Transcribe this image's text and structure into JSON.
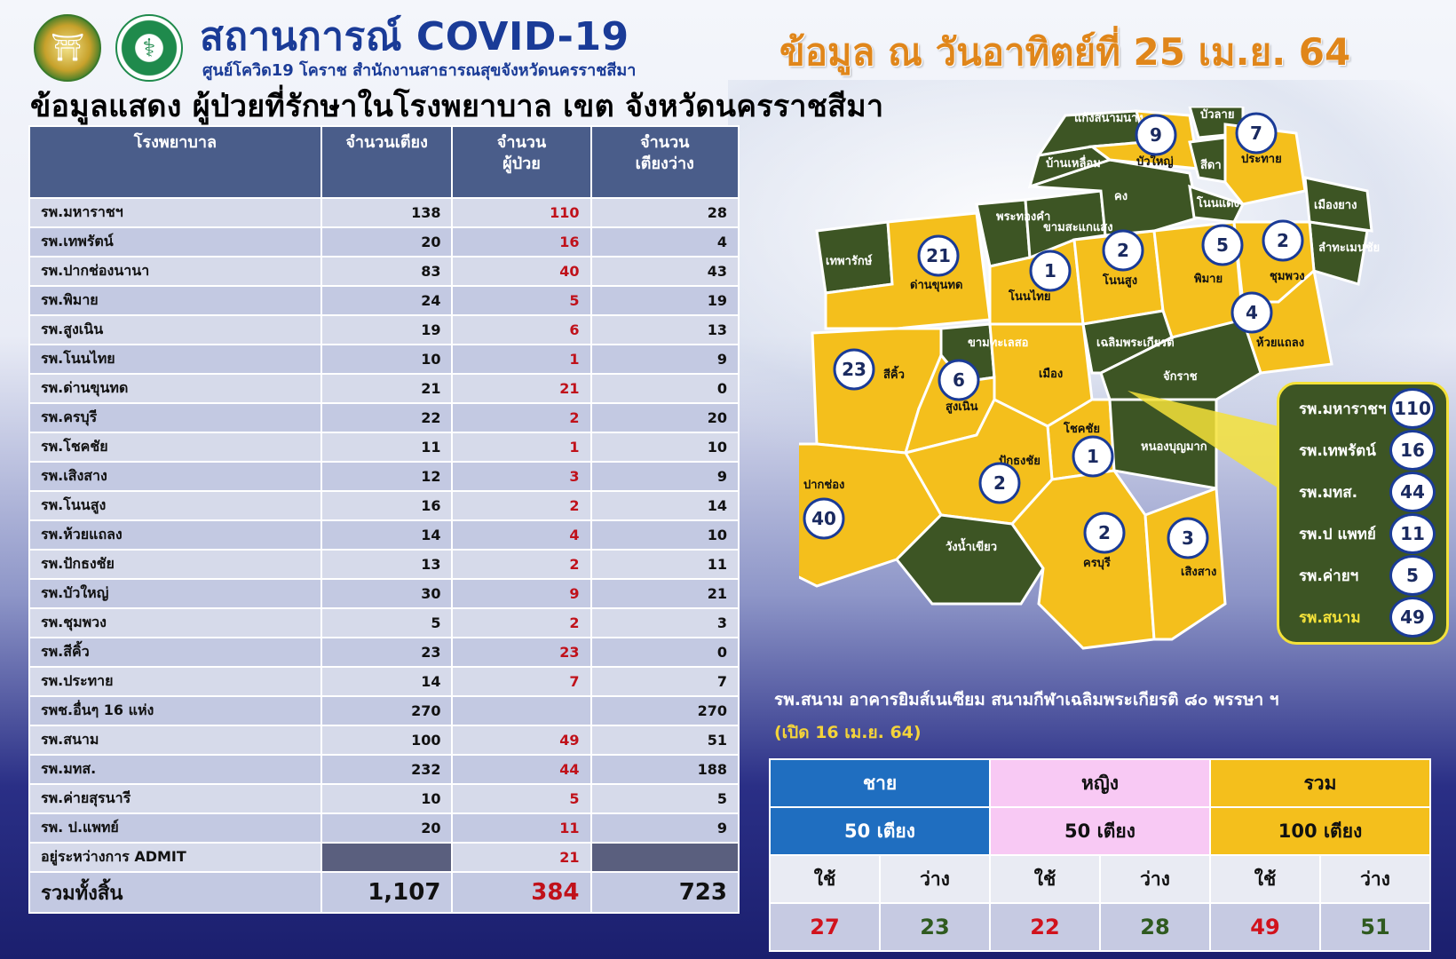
{
  "header": {
    "title": "สถานการณ์ COVID-19",
    "subtitle": "ศูนย์โควิด19 โคราช สำนักงานสาธารณสุขจังหวัดนครราชสีมา",
    "date": "ข้อมูล ณ วันอาทิตย์ที่ 25 เม.ย. 64",
    "headline": "ข้อมูลแสดง  ผู้ป่วยที่รักษาในโรงพยาบาล เขต จังหวัดนครราชสีมา"
  },
  "table": {
    "headers": [
      "โรงพยาบาล",
      "จำนวนเตียง",
      "จำนวน\nผู้ป่วย",
      "จำนวน\nเตียงว่าง"
    ],
    "rows": [
      {
        "name": "รพ.มหาราชฯ",
        "beds": "138",
        "patients": "110",
        "free": "28"
      },
      {
        "name": "รพ.เทพรัตน์",
        "beds": "20",
        "patients": "16",
        "free": "4"
      },
      {
        "name": "รพ.ปากช่องนานา",
        "beds": "83",
        "patients": "40",
        "free": "43"
      },
      {
        "name": "รพ.พิมาย",
        "beds": "24",
        "patients": "5",
        "free": "19"
      },
      {
        "name": "รพ.สูงเนิน",
        "beds": "19",
        "patients": "6",
        "free": "13"
      },
      {
        "name": "รพ.โนนไทย",
        "beds": "10",
        "patients": "1",
        "free": "9"
      },
      {
        "name": "รพ.ด่านขุนทด",
        "beds": "21",
        "patients": "21",
        "free": "0"
      },
      {
        "name": "รพ.ครบุรี",
        "beds": "22",
        "patients": "2",
        "free": "20"
      },
      {
        "name": "รพ.โชคชัย",
        "beds": "11",
        "patients": "1",
        "free": "10"
      },
      {
        "name": "รพ.เสิงสาง",
        "beds": "12",
        "patients": "3",
        "free": "9"
      },
      {
        "name": "รพ.โนนสูง",
        "beds": "16",
        "patients": "2",
        "free": "14"
      },
      {
        "name": "รพ.ห้วยแถลง",
        "beds": "14",
        "patients": "4",
        "free": "10"
      },
      {
        "name": "รพ.ปักธงชัย",
        "beds": "13",
        "patients": "2",
        "free": "11"
      },
      {
        "name": "รพ.บัวใหญ่",
        "beds": "30",
        "patients": "9",
        "free": "21"
      },
      {
        "name": "รพ.ชุมพวง",
        "beds": "5",
        "patients": "2",
        "free": "3"
      },
      {
        "name": "รพ.สีคิ้ว",
        "beds": "23",
        "patients": "23",
        "free": "0"
      },
      {
        "name": "รพ.ประทาย",
        "beds": "14",
        "patients": "7",
        "free": "7"
      },
      {
        "name": "รพช.อื่นๆ 16 แห่ง",
        "beds": "270",
        "patients": "",
        "free": "270"
      },
      {
        "name": "รพ.สนาม",
        "beds": "100",
        "patients": "49",
        "free": "51"
      },
      {
        "name": "รพ.มทส.",
        "beds": "232",
        "patients": "44",
        "free": "188"
      },
      {
        "name": "รพ.ค่ายสุรนารี",
        "beds": "10",
        "patients": "5",
        "free": "5"
      },
      {
        "name": "รพ. ป.แพทย์",
        "beds": "20",
        "patients": "11",
        "free": "9"
      }
    ],
    "admit": {
      "name": "อยู่ระหว่างการ ADMIT",
      "patients": "21"
    },
    "total": {
      "name": "รวมทั้งสิ้น",
      "beds": "1,107",
      "patients": "384",
      "free": "723"
    }
  },
  "map": {
    "districts": [
      {
        "name": "เทพารักษ์",
        "color": "green"
      },
      {
        "name": "ด่านขุนทด",
        "color": "yellow"
      },
      {
        "name": "พระทองคำ",
        "color": "green"
      },
      {
        "name": "โนนไทย",
        "color": "yellow"
      },
      {
        "name": "ขามสะแกแสง",
        "color": "green"
      },
      {
        "name": "โนนสูง",
        "color": "yellow"
      },
      {
        "name": "คง",
        "color": "green"
      },
      {
        "name": "บ้านเหลื่อม",
        "color": "green"
      },
      {
        "name": "แก้งสนามนาง",
        "color": "green"
      },
      {
        "name": "บัวใหญ่",
        "color": "yellow"
      },
      {
        "name": "สีดา",
        "color": "green"
      },
      {
        "name": "บัวลาย",
        "color": "green"
      },
      {
        "name": "ประทาย",
        "color": "yellow"
      },
      {
        "name": "โนนแดง",
        "color": "green"
      },
      {
        "name": "เมืองยาง",
        "color": "green"
      },
      {
        "name": "ลำทะเมนชัย",
        "color": "green"
      },
      {
        "name": "พิมาย",
        "color": "yellow"
      },
      {
        "name": "ชุมพวง",
        "color": "yellow"
      },
      {
        "name": "ห้วยแถลง",
        "color": "yellow"
      },
      {
        "name": "สีคิ้ว",
        "color": "yellow"
      },
      {
        "name": "ขามทะเลสอ",
        "color": "green"
      },
      {
        "name": "เมือง",
        "color": "yellow"
      },
      {
        "name": "เฉลิมพระเกียรติ",
        "color": "green"
      },
      {
        "name": "จักราช",
        "color": "green"
      },
      {
        "name": "สูงเนิน",
        "color": "yellow"
      },
      {
        "name": "โชคชัย",
        "color": "yellow"
      },
      {
        "name": "หนองบุญมาก",
        "color": "green"
      },
      {
        "name": "ปักธงชัย",
        "color": "yellow"
      },
      {
        "name": "ปากช่อง",
        "color": "yellow"
      },
      {
        "name": "วังน้ำเขียว",
        "color": "green"
      },
      {
        "name": "ครบุรี",
        "color": "yellow"
      },
      {
        "name": "เสิงสาง",
        "color": "yellow"
      }
    ],
    "bubbles": [
      {
        "district": "บัวใหญ่",
        "value": "9"
      },
      {
        "district": "ประทาย",
        "value": "7"
      },
      {
        "district": "ด่านขุนทด",
        "value": "21"
      },
      {
        "district": "โนนไทย",
        "value": "1"
      },
      {
        "district": "โนนสูง",
        "value": "2"
      },
      {
        "district": "พิมาย",
        "value": "5"
      },
      {
        "district": "ชุมพวง",
        "value": "2"
      },
      {
        "district": "ห้วยแถลง",
        "value": "4"
      },
      {
        "district": "สีคิ้ว",
        "value": "23"
      },
      {
        "district": "สูงเนิน",
        "value": "6"
      },
      {
        "district": "โชคชัย",
        "value": "1"
      },
      {
        "district": "ปักธงชัย",
        "value": "2"
      },
      {
        "district": "ปากช่อง",
        "value": "40"
      },
      {
        "district": "ครบุรี",
        "value": "2"
      },
      {
        "district": "เสิงสาง",
        "value": "3"
      }
    ],
    "legend": [
      {
        "name": "รพ.มหาราชฯ",
        "value": "110"
      },
      {
        "name": "รพ.เทพรัตน์",
        "value": "16"
      },
      {
        "name": "รพ.มทส.",
        "value": "44"
      },
      {
        "name": "รพ.ป แพทย์",
        "value": "11"
      },
      {
        "name": "รพ.ค่ายฯ",
        "value": "5"
      },
      {
        "name": "รพ.สนาม",
        "value": "49"
      }
    ],
    "colors": {
      "green": "#3d5524",
      "yellow": "#f4bf1c",
      "bubble_border": "#1a3b97"
    }
  },
  "field_hospital": {
    "title": "รพ.สนาม อาคารยิมส์เนเซียม  สนามกีฬาเฉลิมพระเกียรติ ๘๐ พรรษา ฯ",
    "opened": "(เปิด 16 เม.ย. 64)",
    "groups": [
      {
        "label": "ชาย",
        "beds": "50 เตียง",
        "used_label": "ใช้",
        "free_label": "ว่าง",
        "used": "27",
        "free": "23"
      },
      {
        "label": "หญิง",
        "beds": "50 เตียง",
        "used_label": "ใช้",
        "free_label": "ว่าง",
        "used": "22",
        "free": "28"
      },
      {
        "label": "รวม",
        "beds": "100 เตียง",
        "used_label": "ใช้",
        "free_label": "ว่าง",
        "used": "49",
        "free": "51"
      }
    ]
  }
}
